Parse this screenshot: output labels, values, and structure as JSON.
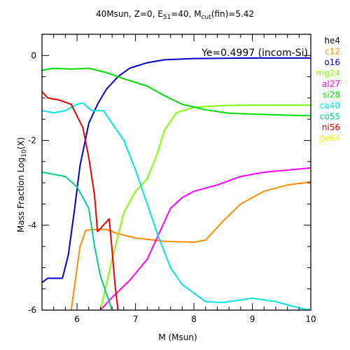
{
  "chart_data": {
    "type": "line",
    "title": {
      "pre": "40Msun, Z=0, E",
      "sub1": "51",
      "mid": "=40, M",
      "sub2": "cut",
      "post": "(fin)=5.42"
    },
    "annotation": "Ye=0.4997 (incom-Si)",
    "xlabel": "M (Msun)",
    "ylabel": {
      "pre": "Mass Fraction Log",
      "sub": "10",
      "post": "(X)"
    },
    "xlim": [
      5.4,
      10
    ],
    "ylim": [
      -6,
      0.5
    ],
    "x_ticks": [
      6,
      7,
      8,
      9,
      10
    ],
    "y_ticks": [
      0,
      -2,
      -4,
      -6
    ],
    "legend_position": "right-outside",
    "series": [
      {
        "name": "he4",
        "color": "#000000",
        "points": []
      },
      {
        "name": "c12",
        "color": "#ff8c00",
        "points": [
          [
            5.9,
            -6.0
          ],
          [
            5.95,
            -5.5
          ],
          [
            6.05,
            -4.5
          ],
          [
            6.15,
            -4.12
          ],
          [
            6.3,
            -4.1
          ],
          [
            6.5,
            -4.1
          ],
          [
            6.7,
            -4.2
          ],
          [
            7.0,
            -4.3
          ],
          [
            7.5,
            -4.38
          ],
          [
            8.0,
            -4.4
          ],
          [
            8.2,
            -4.35
          ],
          [
            8.5,
            -3.9
          ],
          [
            8.8,
            -3.5
          ],
          [
            9.2,
            -3.2
          ],
          [
            9.6,
            -3.05
          ],
          [
            10.0,
            -2.98
          ]
        ]
      },
      {
        "name": "o16",
        "color": "#0000cd",
        "points": [
          [
            5.4,
            -5.35
          ],
          [
            5.5,
            -5.25
          ],
          [
            5.75,
            -5.25
          ],
          [
            5.85,
            -4.7
          ],
          [
            5.95,
            -3.7
          ],
          [
            6.05,
            -2.6
          ],
          [
            6.2,
            -1.6
          ],
          [
            6.35,
            -1.15
          ],
          [
            6.5,
            -0.8
          ],
          [
            6.7,
            -0.5
          ],
          [
            6.9,
            -0.3
          ],
          [
            7.2,
            -0.17
          ],
          [
            7.5,
            -0.1
          ],
          [
            8.0,
            -0.07
          ],
          [
            9.0,
            -0.06
          ],
          [
            10.0,
            -0.06
          ]
        ]
      },
      {
        "name": "mg24",
        "color": "#7fff00",
        "points": [
          [
            6.4,
            -6.0
          ],
          [
            6.6,
            -4.8
          ],
          [
            6.8,
            -3.7
          ],
          [
            7.0,
            -3.2
          ],
          [
            7.2,
            -2.9
          ],
          [
            7.35,
            -2.4
          ],
          [
            7.5,
            -1.75
          ],
          [
            7.7,
            -1.35
          ],
          [
            8.0,
            -1.22
          ],
          [
            8.5,
            -1.18
          ],
          [
            9.0,
            -1.17
          ],
          [
            10.0,
            -1.17
          ]
        ]
      },
      {
        "name": "al27",
        "color": "#ff00ff",
        "points": [
          [
            6.4,
            -6.0
          ],
          [
            6.6,
            -5.7
          ],
          [
            6.9,
            -5.3
          ],
          [
            7.2,
            -4.8
          ],
          [
            7.4,
            -4.2
          ],
          [
            7.6,
            -3.6
          ],
          [
            7.8,
            -3.35
          ],
          [
            8.0,
            -3.2
          ],
          [
            8.4,
            -3.05
          ],
          [
            8.8,
            -2.85
          ],
          [
            9.2,
            -2.75
          ],
          [
            9.6,
            -2.7
          ],
          [
            10.0,
            -2.65
          ]
        ]
      },
      {
        "name": "si28",
        "color": "#00dd00",
        "points": [
          [
            5.4,
            -0.35
          ],
          [
            5.6,
            -0.3
          ],
          [
            5.9,
            -0.32
          ],
          [
            6.2,
            -0.3
          ],
          [
            6.5,
            -0.4
          ],
          [
            6.8,
            -0.55
          ],
          [
            7.2,
            -0.72
          ],
          [
            7.5,
            -0.95
          ],
          [
            7.8,
            -1.15
          ],
          [
            8.2,
            -1.28
          ],
          [
            8.6,
            -1.36
          ],
          [
            9.0,
            -1.38
          ],
          [
            9.5,
            -1.4
          ],
          [
            10.0,
            -1.42
          ]
        ]
      },
      {
        "name": "ca40",
        "color": "#00e5e5",
        "points": [
          [
            5.4,
            -1.3
          ],
          [
            5.6,
            -1.35
          ],
          [
            5.8,
            -1.3
          ],
          [
            6.0,
            -1.15
          ],
          [
            6.1,
            -1.12
          ],
          [
            6.25,
            -1.3
          ],
          [
            6.45,
            -1.3
          ],
          [
            6.6,
            -1.6
          ],
          [
            6.8,
            -2.0
          ],
          [
            7.0,
            -2.7
          ],
          [
            7.2,
            -3.5
          ],
          [
            7.4,
            -4.3
          ],
          [
            7.6,
            -5.0
          ],
          [
            7.8,
            -5.4
          ],
          [
            8.0,
            -5.6
          ],
          [
            8.2,
            -5.8
          ],
          [
            8.5,
            -5.82
          ],
          [
            9.0,
            -5.72
          ],
          [
            9.4,
            -5.8
          ],
          [
            9.8,
            -5.95
          ],
          [
            10.0,
            -6.0
          ]
        ]
      },
      {
        "name": "co55",
        "color": "#00d080",
        "points": [
          [
            5.4,
            -2.75
          ],
          [
            5.6,
            -2.8
          ],
          [
            5.8,
            -2.85
          ],
          [
            6.0,
            -3.1
          ],
          [
            6.2,
            -3.6
          ],
          [
            6.3,
            -4.5
          ],
          [
            6.4,
            -5.2
          ],
          [
            6.5,
            -5.6
          ],
          [
            6.6,
            -6.0
          ]
        ]
      },
      {
        "name": "ni56",
        "color": "#ee0000",
        "points": [
          [
            5.4,
            -0.85
          ],
          [
            5.5,
            -1.0
          ],
          [
            5.7,
            -1.05
          ],
          [
            5.9,
            -1.15
          ],
          [
            6.1,
            -1.7
          ],
          [
            6.2,
            -2.4
          ],
          [
            6.3,
            -3.3
          ],
          [
            6.35,
            -4.15
          ],
          [
            6.45,
            -4.0
          ],
          [
            6.55,
            -3.85
          ],
          [
            6.6,
            -4.6
          ],
          [
            6.65,
            -5.4
          ],
          [
            6.7,
            -6.0
          ]
        ]
      },
      {
        "name": "ge64",
        "color": "#f0f000",
        "points": []
      }
    ]
  }
}
